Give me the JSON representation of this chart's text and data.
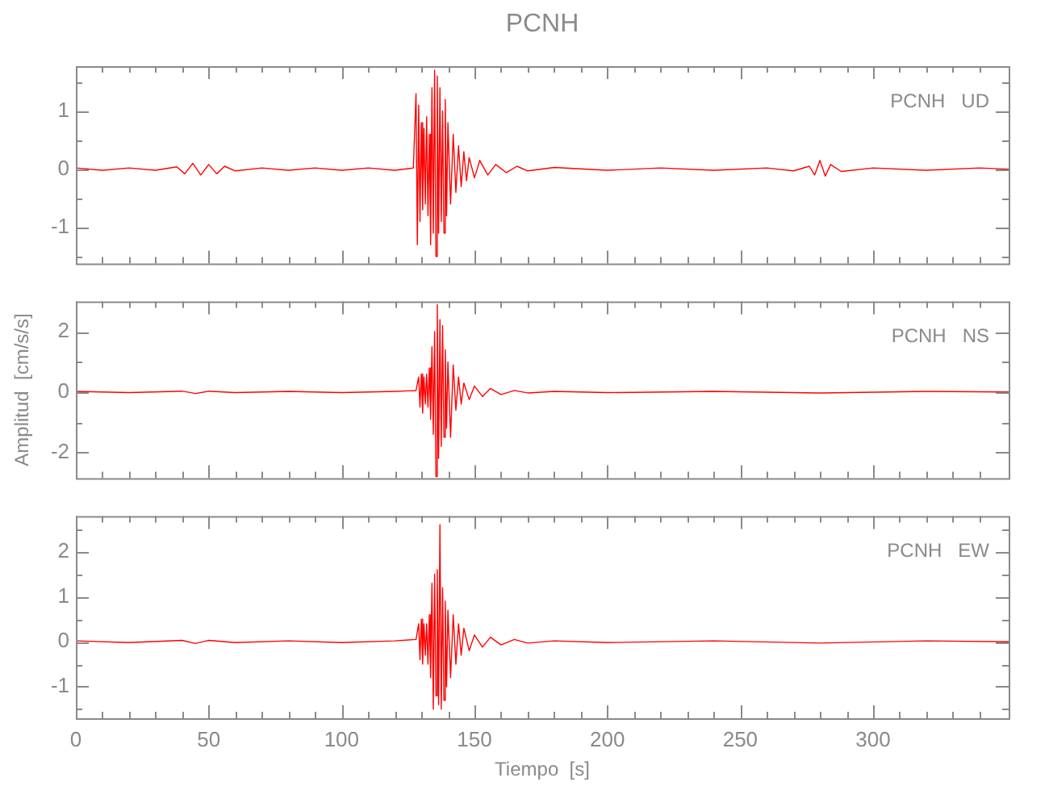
{
  "chart_data": [
    {
      "type": "line",
      "title": "PCNH",
      "annotations": [
        "PCNH   UD"
      ],
      "xlim": [
        0,
        351
      ],
      "xticks": [
        0,
        {
          "value": 10,
          "label": null
        },
        {
          "value": 20,
          "label": null
        },
        {
          "value": 30,
          "label": null
        },
        {
          "value": 40,
          "label": null
        },
        50,
        {
          "value": 60,
          "label": null
        },
        {
          "value": 70,
          "label": null
        },
        {
          "value": 80,
          "label": null
        },
        {
          "value": 90,
          "label": null
        },
        100,
        {
          "value": 110,
          "label": null
        },
        {
          "value": 120,
          "label": null
        },
        {
          "value": 130,
          "label": null
        },
        {
          "value": 140,
          "label": null
        },
        150,
        {
          "value": 160,
          "label": null
        },
        {
          "value": 170,
          "label": null
        },
        {
          "value": 180,
          "label": null
        },
        {
          "value": 190,
          "label": null
        },
        200,
        {
          "value": 210,
          "label": null
        },
        {
          "value": 220,
          "label": null
        },
        {
          "value": 230,
          "label": null
        },
        {
          "value": 240,
          "label": null
        },
        250,
        {
          "value": 260,
          "label": null
        },
        {
          "value": 270,
          "label": null
        },
        {
          "value": 280,
          "label": null
        },
        {
          "value": 290,
          "label": null
        },
        300,
        {
          "value": 310,
          "label": null
        },
        {
          "value": 320,
          "label": null
        },
        {
          "value": 330,
          "label": null
        },
        {
          "value": 340,
          "label": null
        }
      ],
      "ylim": [
        -1.62,
        1.77
      ],
      "yticks": [
        {
          "value": -1.5,
          "label": null
        },
        -1,
        {
          "value": -0.5,
          "label": null
        },
        0,
        {
          "value": 0.5,
          "label": null
        },
        1,
        {
          "value": 1.5,
          "label": null
        }
      ],
      "tick_labels": "y",
      "marker": "none",
      "line_style": "solid",
      "series": [
        {
          "color": "#ff0000",
          "x": [
            0,
            10,
            20,
            30,
            38,
            41,
            44,
            47,
            50,
            53,
            56,
            60,
            70,
            80,
            90,
            100,
            110,
            120,
            127,
            128,
            128.5,
            129,
            129.5,
            130,
            130.5,
            131,
            131.5,
            132,
            132.5,
            133,
            133.5,
            134,
            134.5,
            135,
            135.5,
            136,
            136.5,
            137,
            137.5,
            138,
            138.5,
            139,
            139.5,
            140,
            141,
            142,
            143,
            144,
            145,
            146,
            147,
            148,
            150,
            152,
            155,
            158,
            162,
            166,
            170,
            180,
            200,
            220,
            240,
            260,
            270,
            276,
            278,
            280,
            282,
            284,
            288,
            300,
            320,
            340,
            351
          ],
          "values": [
            0.02,
            -0.02,
            0.02,
            -0.02,
            0.04,
            -0.08,
            0.1,
            -0.1,
            0.08,
            -0.08,
            0.05,
            -0.03,
            0.02,
            -0.02,
            0.02,
            -0.02,
            0.02,
            -0.02,
            0.02,
            1.3,
            -1.3,
            1.1,
            -0.9,
            0.8,
            -0.7,
            0.7,
            -0.6,
            0.9,
            -0.8,
            0.6,
            -1.3,
            1.4,
            -1.1,
            1.7,
            -1.5,
            1.6,
            -1.1,
            1.4,
            -0.9,
            1.0,
            -1.1,
            1.2,
            -0.8,
            0.8,
            -0.6,
            0.6,
            -0.4,
            0.4,
            -0.3,
            0.3,
            -0.2,
            0.2,
            -0.15,
            0.15,
            -0.1,
            0.08,
            -0.06,
            0.05,
            -0.03,
            0.03,
            -0.02,
            0.02,
            -0.02,
            0.02,
            -0.03,
            0.05,
            -0.1,
            0.15,
            -0.12,
            0.08,
            -0.04,
            0.02,
            -0.02,
            0.02,
            0.0
          ]
        }
      ]
    },
    {
      "type": "line",
      "ylabel": "Amplitud  [cm/s/s]",
      "annotations": [
        "PCNH   NS"
      ],
      "xlim": [
        0,
        351
      ],
      "xticks": [
        0,
        {
          "value": 10,
          "label": null
        },
        {
          "value": 20,
          "label": null
        },
        {
          "value": 30,
          "label": null
        },
        {
          "value": 40,
          "label": null
        },
        50,
        {
          "value": 60,
          "label": null
        },
        {
          "value": 70,
          "label": null
        },
        {
          "value": 80,
          "label": null
        },
        {
          "value": 90,
          "label": null
        },
        100,
        {
          "value": 110,
          "label": null
        },
        {
          "value": 120,
          "label": null
        },
        {
          "value": 130,
          "label": null
        },
        {
          "value": 140,
          "label": null
        },
        150,
        {
          "value": 160,
          "label": null
        },
        {
          "value": 170,
          "label": null
        },
        {
          "value": 180,
          "label": null
        },
        {
          "value": 190,
          "label": null
        },
        200,
        {
          "value": 210,
          "label": null
        },
        {
          "value": 220,
          "label": null
        },
        {
          "value": 230,
          "label": null
        },
        {
          "value": 240,
          "label": null
        },
        250,
        {
          "value": 260,
          "label": null
        },
        {
          "value": 270,
          "label": null
        },
        {
          "value": 280,
          "label": null
        },
        {
          "value": 290,
          "label": null
        },
        300,
        {
          "value": 310,
          "label": null
        },
        {
          "value": 320,
          "label": null
        },
        {
          "value": 330,
          "label": null
        },
        {
          "value": 340,
          "label": null
        }
      ],
      "ylim": [
        -2.85,
        3.0
      ],
      "yticks": [
        -2,
        {
          "value": -1,
          "label": null
        },
        0,
        {
          "value": 1,
          "label": null
        },
        2
      ],
      "tick_labels": "y",
      "marker": "none",
      "line_style": "solid",
      "series": [
        {
          "color": "#ff0000",
          "x": [
            0,
            20,
            40,
            45,
            50,
            60,
            80,
            100,
            120,
            128,
            129,
            129.5,
            130,
            130.5,
            131,
            131.5,
            132,
            132.5,
            133,
            133.5,
            134,
            134.5,
            135,
            135.5,
            136,
            136.5,
            137,
            137.5,
            138,
            138.5,
            139,
            139.5,
            140,
            141,
            142,
            143,
            144,
            145,
            146,
            148,
            150,
            153,
            156,
            160,
            165,
            170,
            180,
            200,
            240,
            280,
            320,
            351
          ],
          "values": [
            0.02,
            -0.02,
            0.03,
            -0.05,
            0.03,
            -0.02,
            0.02,
            -0.02,
            0.02,
            0.05,
            0.5,
            -0.5,
            0.6,
            -0.7,
            0.5,
            -0.4,
            0.6,
            -0.5,
            0.8,
            -0.9,
            1.5,
            -1.4,
            2.0,
            -2.8,
            2.9,
            -2.2,
            2.4,
            -1.8,
            2.2,
            -1.5,
            1.4,
            -1.2,
            1.0,
            -1.5,
            0.9,
            -0.6,
            0.5,
            -0.4,
            0.3,
            -0.25,
            0.2,
            -0.15,
            0.12,
            -0.08,
            0.05,
            -0.03,
            0.02,
            -0.02,
            0.02,
            -0.03,
            0.02,
            0.0
          ]
        }
      ]
    },
    {
      "type": "line",
      "xlabel": "Tiempo  [s]",
      "annotations": [
        "PCNH   EW"
      ],
      "xlim": [
        0,
        351
      ],
      "xticks": [
        0,
        {
          "value": 10,
          "label": null
        },
        {
          "value": 20,
          "label": null
        },
        {
          "value": 30,
          "label": null
        },
        {
          "value": 40,
          "label": null
        },
        50,
        {
          "value": 60,
          "label": null
        },
        {
          "value": 70,
          "label": null
        },
        {
          "value": 80,
          "label": null
        },
        {
          "value": 90,
          "label": null
        },
        100,
        {
          "value": 110,
          "label": null
        },
        {
          "value": 120,
          "label": null
        },
        {
          "value": 130,
          "label": null
        },
        {
          "value": 140,
          "label": null
        },
        150,
        {
          "value": 160,
          "label": null
        },
        {
          "value": 170,
          "label": null
        },
        {
          "value": 180,
          "label": null
        },
        {
          "value": 190,
          "label": null
        },
        200,
        {
          "value": 210,
          "label": null
        },
        {
          "value": 220,
          "label": null
        },
        {
          "value": 230,
          "label": null
        },
        {
          "value": 240,
          "label": null
        },
        250,
        {
          "value": 260,
          "label": null
        },
        {
          "value": 270,
          "label": null
        },
        {
          "value": 280,
          "label": null
        },
        {
          "value": 290,
          "label": null
        },
        300,
        {
          "value": 310,
          "label": null
        },
        {
          "value": 320,
          "label": null
        },
        {
          "value": 330,
          "label": null
        },
        {
          "value": 340,
          "label": null
        }
      ],
      "ylim": [
        -1.7,
        2.79
      ],
      "yticks": [
        {
          "value": -1.5,
          "label": null
        },
        -1,
        {
          "value": -0.5,
          "label": null
        },
        0,
        {
          "value": 0.5,
          "label": null
        },
        1,
        {
          "value": 1.5,
          "label": null
        },
        2,
        {
          "value": 2.5,
          "label": null
        }
      ],
      "marker": "none",
      "line_style": "solid",
      "series": [
        {
          "color": "#ff0000",
          "x": [
            0,
            20,
            40,
            45,
            50,
            60,
            80,
            100,
            120,
            128,
            129,
            129.5,
            130,
            130.5,
            131,
            131.5,
            132,
            132.5,
            133,
            133.5,
            134,
            134.5,
            135,
            135.5,
            136,
            136.5,
            137,
            137.5,
            138,
            138.5,
            139,
            139.5,
            140,
            141,
            142,
            143,
            144,
            145,
            146,
            148,
            150,
            153,
            156,
            160,
            165,
            170,
            180,
            200,
            240,
            280,
            320,
            351
          ],
          "values": [
            0.02,
            -0.02,
            0.03,
            -0.04,
            0.03,
            -0.02,
            0.02,
            -0.02,
            0.02,
            0.05,
            0.4,
            -0.4,
            0.5,
            -0.5,
            0.4,
            -0.3,
            0.4,
            -0.5,
            0.6,
            -0.8,
            1.3,
            -1.5,
            1.5,
            -1.2,
            1.6,
            -1.4,
            2.6,
            -1.5,
            1.2,
            -1.3,
            0.9,
            -1.0,
            0.7,
            -0.8,
            0.6,
            -0.5,
            0.4,
            -0.3,
            0.3,
            -0.2,
            0.15,
            -0.12,
            0.1,
            -0.07,
            0.05,
            -0.03,
            0.02,
            -0.02,
            0.02,
            -0.03,
            0.02,
            0.0
          ]
        }
      ]
    }
  ]
}
